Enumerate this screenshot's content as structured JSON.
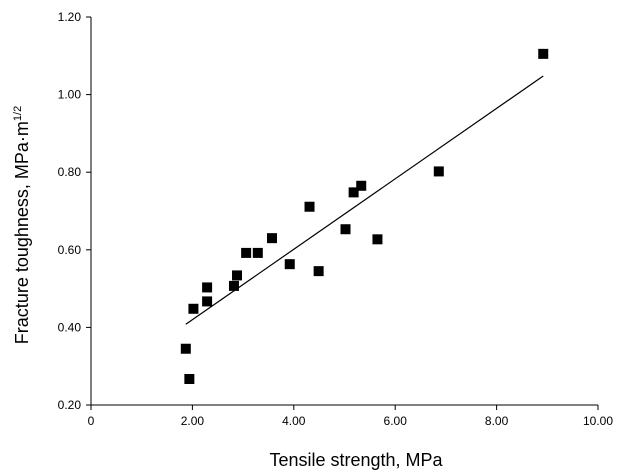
{
  "chart_data": {
    "type": "scatter",
    "xlabel": "Tensile strength, MPa",
    "ylabel": "Fracture toughness, MPa·m",
    "ylabel_superscript": "1/2",
    "xlim": [
      0,
      10
    ],
    "ylim": [
      0.2,
      1.2
    ],
    "x_ticks": [
      0,
      2,
      4,
      6,
      8,
      10
    ],
    "x_tick_labels": [
      "0",
      "2.00",
      "4.00",
      "6.00",
      "8.00",
      "10.00"
    ],
    "y_ticks": [
      0.2,
      0.4,
      0.6,
      0.8,
      1.0,
      1.2
    ],
    "y_tick_labels": [
      "0.20",
      "0.40",
      "0.60",
      "0.80",
      "1.00",
      "1.20"
    ],
    "grid": false,
    "marker": "square",
    "marker_color": "#000000",
    "points": [
      {
        "x": 1.87,
        "y": 0.345
      },
      {
        "x": 1.94,
        "y": 0.267
      },
      {
        "x": 2.02,
        "y": 0.448
      },
      {
        "x": 2.29,
        "y": 0.503
      },
      {
        "x": 2.29,
        "y": 0.467
      },
      {
        "x": 2.82,
        "y": 0.507
      },
      {
        "x": 2.88,
        "y": 0.534
      },
      {
        "x": 3.06,
        "y": 0.592
      },
      {
        "x": 3.29,
        "y": 0.592
      },
      {
        "x": 3.57,
        "y": 0.63
      },
      {
        "x": 3.92,
        "y": 0.563
      },
      {
        "x": 4.31,
        "y": 0.711
      },
      {
        "x": 4.49,
        "y": 0.545
      },
      {
        "x": 5.02,
        "y": 0.653
      },
      {
        "x": 5.18,
        "y": 0.748
      },
      {
        "x": 5.33,
        "y": 0.765
      },
      {
        "x": 5.65,
        "y": 0.627
      },
      {
        "x": 6.86,
        "y": 0.802
      },
      {
        "x": 8.92,
        "y": 1.105
      }
    ],
    "trendline": {
      "type": "linear",
      "x": [
        1.87,
        8.92
      ],
      "y": [
        0.408,
        1.048
      ]
    }
  }
}
